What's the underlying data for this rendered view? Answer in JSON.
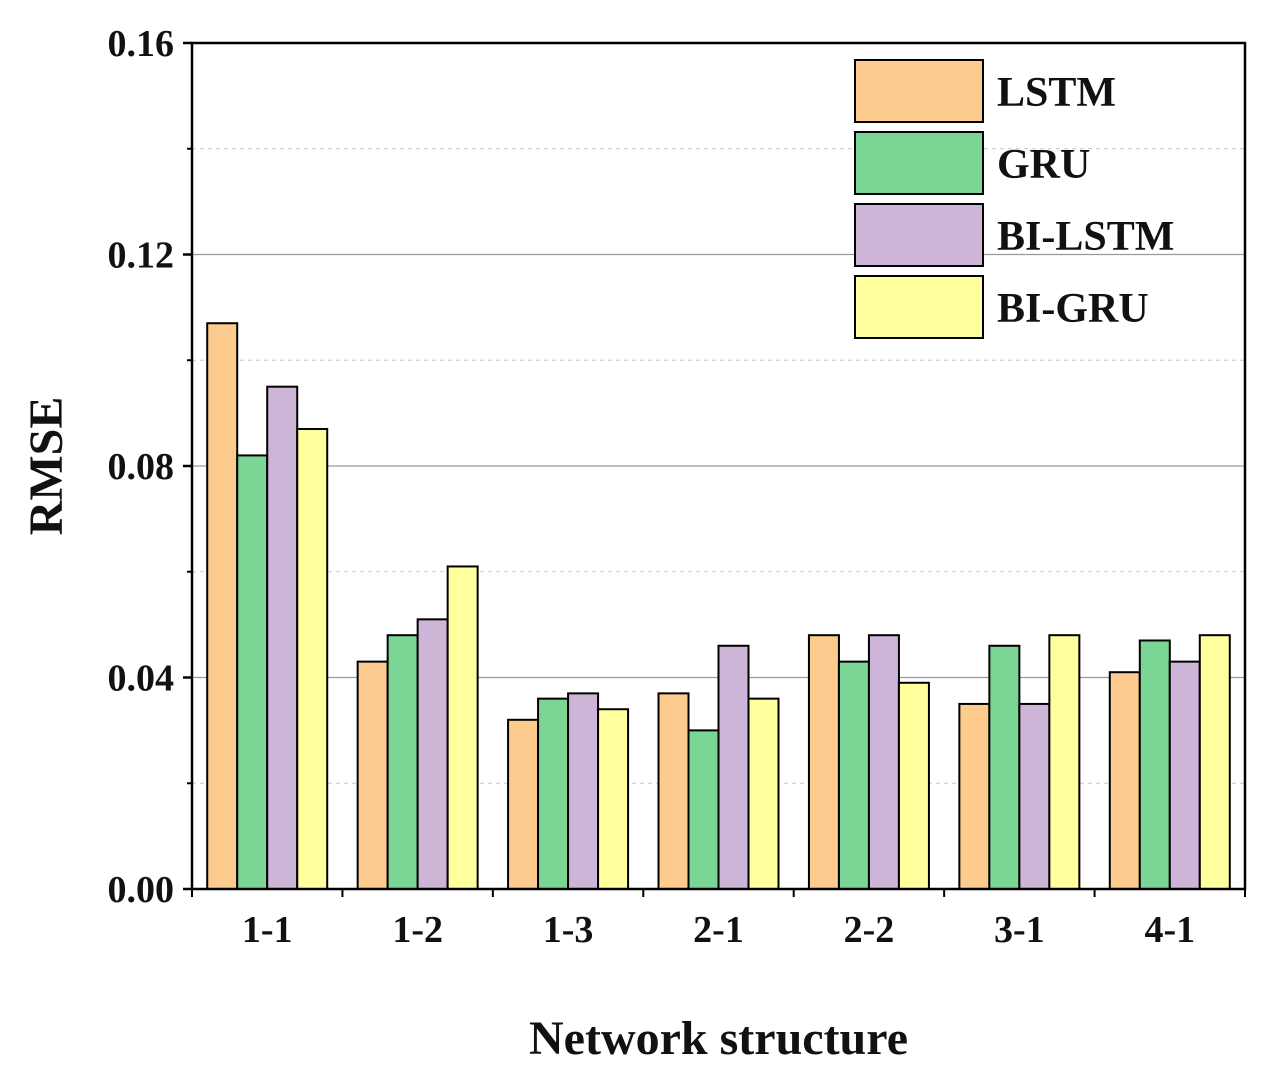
{
  "chart_data": {
    "type": "bar",
    "title": "",
    "xlabel": "Network structure",
    "ylabel": "RMSE",
    "categories": [
      "1-1",
      "1-2",
      "1-3",
      "2-1",
      "2-2",
      "3-1",
      "4-1"
    ],
    "ylim": [
      0,
      0.16
    ],
    "yticks": [
      0.0,
      0.04,
      0.08,
      0.12,
      0.16
    ],
    "ytick_labels": [
      "0.00",
      "0.04",
      "0.08",
      "0.12",
      "0.16"
    ],
    "grid": "horizontal",
    "legend_position": "top-right",
    "series": [
      {
        "name": "LSTM",
        "color": "#FDCB8E",
        "values": [
          0.107,
          0.043,
          0.032,
          0.037,
          0.048,
          0.035,
          0.041
        ]
      },
      {
        "name": "GRU",
        "color": "#7BD695",
        "values": [
          0.082,
          0.048,
          0.036,
          0.03,
          0.043,
          0.046,
          0.047
        ]
      },
      {
        "name": "BI-LSTM",
        "color": "#CDB5D8",
        "values": [
          0.095,
          0.051,
          0.037,
          0.046,
          0.048,
          0.035,
          0.043
        ]
      },
      {
        "name": "BI-GRU",
        "color": "#FFFF9E",
        "values": [
          0.087,
          0.061,
          0.034,
          0.036,
          0.039,
          0.048,
          0.048
        ]
      }
    ]
  }
}
